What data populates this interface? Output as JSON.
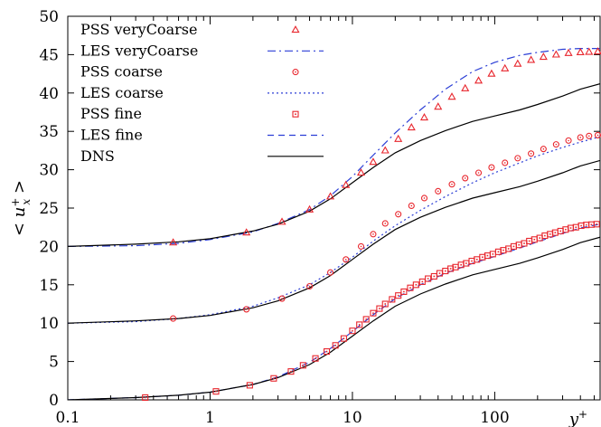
{
  "chart_data": {
    "type": "line",
    "xlabel": "y+",
    "ylabel": "< u_x^+ >",
    "xscale": "log",
    "xlim": [
      0.1,
      550
    ],
    "ylim": [
      0,
      50
    ],
    "xticks": [
      {
        "value": 0.1,
        "label": "0.1"
      },
      {
        "value": 1,
        "label": "1"
      },
      {
        "value": 10,
        "label": "10"
      },
      {
        "value": 100,
        "label": "100"
      }
    ],
    "yticks": [
      0,
      5,
      10,
      15,
      20,
      25,
      30,
      35,
      40,
      45,
      50
    ],
    "legend_position": "top-left",
    "grid": false,
    "series": [
      {
        "name": "PSS veryCoarse",
        "kind": "marker",
        "marker": "triangle",
        "color": "#e8262d",
        "x": [
          0.55,
          1.8,
          3.2,
          5.0,
          7.0,
          9.0,
          11.5,
          14.0,
          17.0,
          21.0,
          26.0,
          32.0,
          40.0,
          50.0,
          62.0,
          77.0,
          95.0,
          118.0,
          145.0,
          180.0,
          220.0,
          270.0,
          330.0,
          400.0,
          460.0,
          530.0
        ],
        "y": [
          20.5,
          21.8,
          23.2,
          24.8,
          26.5,
          28.0,
          29.6,
          31.0,
          32.5,
          34.0,
          35.5,
          36.8,
          38.2,
          39.5,
          40.6,
          41.6,
          42.5,
          43.2,
          43.8,
          44.3,
          44.7,
          45.0,
          45.2,
          45.3,
          45.35,
          45.4
        ]
      },
      {
        "name": "LES veryCoarse",
        "kind": "line",
        "dash": "dashdot",
        "color": "#2c3fd6",
        "x": [
          0.1,
          0.3,
          0.6,
          1.0,
          2.0,
          3.0,
          5.0,
          7.0,
          10.0,
          14.0,
          20.0,
          30.0,
          45.0,
          70.0,
          100.0,
          150.0,
          200.0,
          300.0,
          400.0,
          550.0
        ],
        "y": [
          20.0,
          20.1,
          20.4,
          20.9,
          21.9,
          23.0,
          24.8,
          26.6,
          29.1,
          31.9,
          34.8,
          37.8,
          40.5,
          42.8,
          44.0,
          44.9,
          45.3,
          45.7,
          45.8,
          45.8
        ]
      },
      {
        "name": "PSS coarse",
        "kind": "marker",
        "marker": "circle",
        "color": "#e8262d",
        "x": [
          0.55,
          1.8,
          3.2,
          5.0,
          7.0,
          9.0,
          11.5,
          14.0,
          17.0,
          21.0,
          26.0,
          32.0,
          40.0,
          50.0,
          62.0,
          77.0,
          95.0,
          118.0,
          145.0,
          180.0,
          220.0,
          270.0,
          330.0,
          400.0,
          460.0,
          530.0
        ],
        "y": [
          10.6,
          11.8,
          13.2,
          14.8,
          16.6,
          18.3,
          20.0,
          21.6,
          23.0,
          24.2,
          25.3,
          26.3,
          27.2,
          28.1,
          28.9,
          29.6,
          30.3,
          30.9,
          31.5,
          32.1,
          32.7,
          33.3,
          33.8,
          34.2,
          34.4,
          34.5
        ]
      },
      {
        "name": "LES coarse",
        "kind": "line",
        "dash": "dot",
        "color": "#2c3fd6",
        "x": [
          0.1,
          0.3,
          0.6,
          1.0,
          2.0,
          3.0,
          5.0,
          7.0,
          10.0,
          14.0,
          20.0,
          30.0,
          45.0,
          70.0,
          100.0,
          150.0,
          200.0,
          300.0,
          400.0,
          550.0
        ],
        "y": [
          10.0,
          10.2,
          10.6,
          11.1,
          12.2,
          13.3,
          15.0,
          16.6,
          18.6,
          20.7,
          22.7,
          24.7,
          26.5,
          28.3,
          29.6,
          30.9,
          31.8,
          32.9,
          33.6,
          34.3
        ]
      },
      {
        "name": "PSS fine",
        "kind": "marker",
        "marker": "square",
        "color": "#e8262d",
        "x": [
          0.35,
          1.1,
          1.9,
          2.8,
          3.7,
          4.5,
          5.5,
          6.6,
          7.6,
          8.7,
          10.0,
          11.2,
          12.5,
          14.0,
          15.5,
          17.0,
          19.0,
          21.0,
          23.0,
          25.5,
          28.0,
          31.0,
          34.0,
          37.5,
          41.0,
          45.0,
          49.0,
          53.0,
          58.0,
          63.0,
          69.0,
          75.0,
          82.0,
          89.0,
          97.0,
          106.0,
          115.0,
          125.0,
          136.0,
          148.0,
          161.0,
          175.0,
          190.0,
          207.0,
          225.0,
          245.0,
          266.0,
          290.0,
          315.0,
          342.0,
          372.0,
          405.0,
          440.0,
          478.0,
          520.0
        ],
        "y": [
          0.3,
          1.1,
          1.9,
          2.8,
          3.7,
          4.5,
          5.4,
          6.3,
          7.1,
          8.0,
          9.0,
          9.8,
          10.5,
          11.3,
          11.9,
          12.5,
          13.1,
          13.6,
          14.1,
          14.6,
          15.0,
          15.4,
          15.8,
          16.1,
          16.5,
          16.8,
          17.1,
          17.3,
          17.6,
          17.8,
          18.1,
          18.3,
          18.6,
          18.8,
          19.0,
          19.3,
          19.5,
          19.7,
          20.0,
          20.2,
          20.4,
          20.7,
          20.9,
          21.1,
          21.4,
          21.6,
          21.8,
          22.0,
          22.2,
          22.4,
          22.5,
          22.7,
          22.8,
          22.85,
          22.9
        ]
      },
      {
        "name": "LES fine",
        "kind": "line",
        "dash": "dash",
        "color": "#2c3fd6",
        "x": [
          0.1,
          0.3,
          0.6,
          1.0,
          2.0,
          3.0,
          5.0,
          7.0,
          10.0,
          14.0,
          20.0,
          30.0,
          45.0,
          70.0,
          100.0,
          150.0,
          200.0,
          300.0,
          400.0,
          550.0
        ],
        "y": [
          0.0,
          0.3,
          0.6,
          1.0,
          2.0,
          3.0,
          4.9,
          6.7,
          8.9,
          11.1,
          13.2,
          15.0,
          16.5,
          17.8,
          18.7,
          19.8,
          20.6,
          21.7,
          22.4,
          22.9
        ]
      },
      {
        "name": "DNS",
        "kind": "line",
        "dash": "solid",
        "color": "#000000",
        "groups": [
          {
            "x": [
              0.1,
              0.3,
              0.6,
              1.0,
              2.0,
              3.0,
              5.0,
              7.0,
              10.0,
              14.0,
              20.0,
              30.0,
              45.0,
              70.0,
              100.0,
              150.0,
              200.0,
              300.0,
              400.0,
              550.0
            ],
            "y": [
              0.0,
              0.3,
              0.6,
              1.0,
              2.0,
              2.9,
              4.6,
              6.2,
              8.3,
              10.3,
              12.2,
              13.8,
              15.1,
              16.3,
              17.0,
              17.8,
              18.5,
              19.6,
              20.5,
              21.2
            ]
          },
          {
            "x": [
              0.1,
              0.3,
              0.6,
              1.0,
              2.0,
              3.0,
              5.0,
              7.0,
              10.0,
              14.0,
              20.0,
              30.0,
              45.0,
              70.0,
              100.0,
              150.0,
              200.0,
              300.0,
              400.0,
              550.0
            ],
            "y": [
              10.0,
              10.3,
              10.6,
              11.0,
              12.0,
              12.9,
              14.6,
              16.2,
              18.3,
              20.3,
              22.2,
              23.8,
              25.1,
              26.3,
              27.0,
              27.8,
              28.5,
              29.6,
              30.5,
              31.2
            ]
          },
          {
            "x": [
              0.1,
              0.3,
              0.6,
              1.0,
              2.0,
              3.0,
              5.0,
              7.0,
              10.0,
              14.0,
              20.0,
              30.0,
              45.0,
              70.0,
              100.0,
              150.0,
              200.0,
              300.0,
              400.0,
              550.0
            ],
            "y": [
              20.0,
              20.3,
              20.6,
              21.0,
              22.0,
              22.9,
              24.6,
              26.2,
              28.3,
              30.3,
              32.2,
              33.8,
              35.1,
              36.3,
              37.0,
              37.8,
              38.5,
              39.6,
              40.5,
              41.2
            ]
          }
        ]
      }
    ]
  }
}
